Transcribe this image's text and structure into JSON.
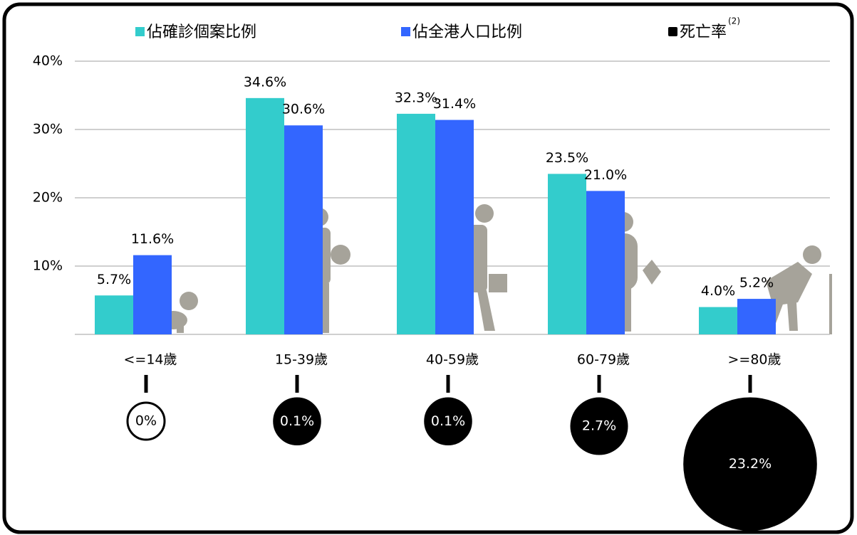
{
  "chart_data": {
    "type": "bar",
    "categories": [
      "<=14歲",
      "15-39歲",
      "40-59歲",
      "60-79歲",
      ">=80歲"
    ],
    "series": [
      {
        "name": "佔確診個案比例",
        "color": "#33cccc",
        "values": [
          5.7,
          34.6,
          32.3,
          23.5,
          4.0
        ],
        "value_labels": [
          "5.7%",
          "34.6%",
          "32.3%",
          "23.5%",
          "4.0%"
        ]
      },
      {
        "name": "佔全港人口比例",
        "color": "#3366ff",
        "values": [
          11.6,
          30.6,
          31.4,
          21.0,
          5.2
        ],
        "value_labels": [
          "11.6%",
          "30.6%",
          "31.4%",
          "21.0%",
          "5.2%"
        ]
      }
    ],
    "death_rate": {
      "name": "死亡率",
      "name_note": "(2)",
      "color": "#000000",
      "values": [
        0,
        0.1,
        0.1,
        2.7,
        23.2
      ],
      "value_labels": [
        "0%",
        "0.1%",
        "0.1%",
        "2.7%",
        "23.2%"
      ]
    },
    "ylim": [
      0,
      40
    ],
    "yticks": [
      {
        "value": 10,
        "label": "10%"
      },
      {
        "value": 20,
        "label": "20%"
      },
      {
        "value": 30,
        "label": "30%"
      },
      {
        "value": 40,
        "label": "40%"
      }
    ],
    "grid": true
  }
}
